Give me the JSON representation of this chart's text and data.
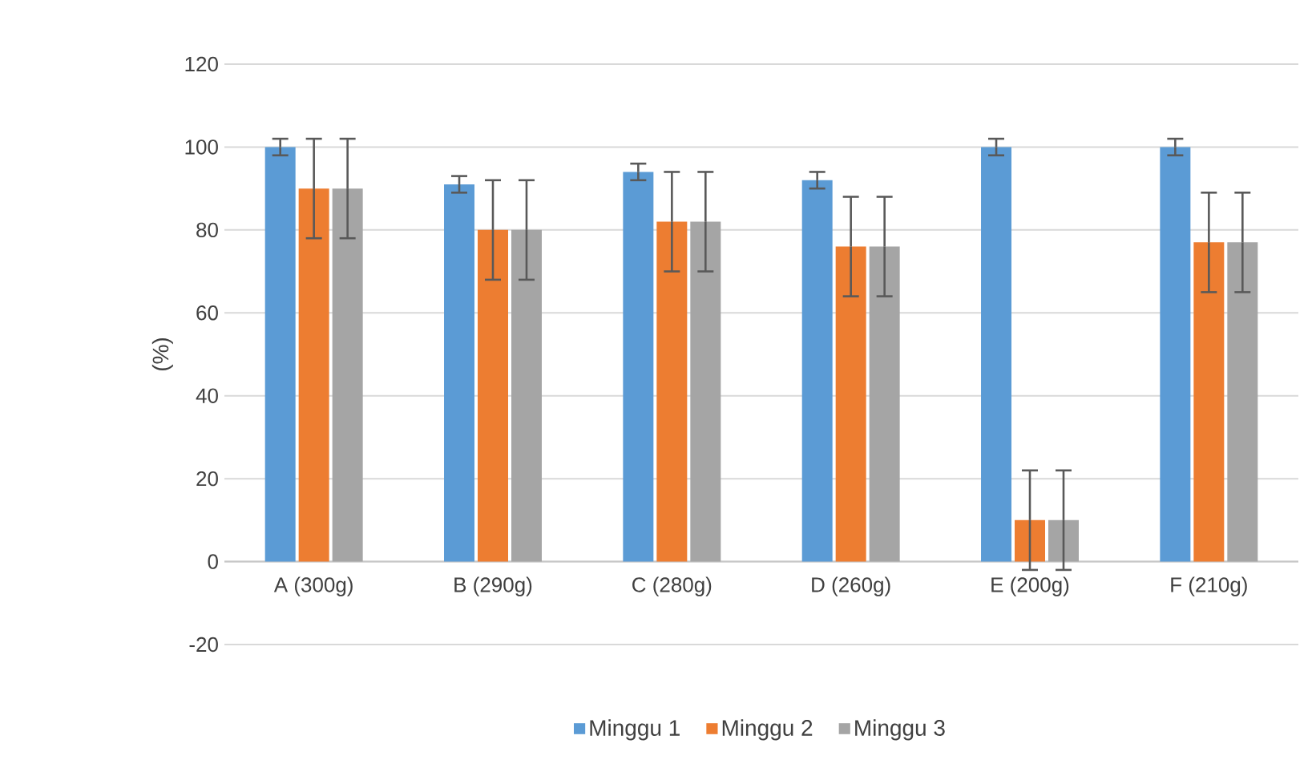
{
  "chart_data": {
    "type": "bar",
    "ylabel": "(%)",
    "categories": [
      "A (300g)",
      "B (290g)",
      "C (280g)",
      "D (260g)",
      "E (200g)",
      "F (210g)"
    ],
    "series": [
      {
        "name": "Minggu 1",
        "color": "#5b9bd5",
        "values": [
          100,
          91,
          94,
          92,
          100,
          100
        ],
        "errors": [
          2,
          2,
          2,
          2,
          2,
          2
        ]
      },
      {
        "name": "Minggu 2",
        "color": "#ed7d31",
        "values": [
          90,
          80,
          82,
          76,
          10,
          77
        ],
        "errors": [
          12,
          12,
          12,
          12,
          12,
          12
        ]
      },
      {
        "name": "Minggu 3",
        "color": "#a5a5a5",
        "values": [
          90,
          80,
          82,
          76,
          10,
          77
        ],
        "errors": [
          12,
          12,
          12,
          12,
          12,
          12
        ]
      }
    ],
    "ylim": [
      -20,
      120
    ],
    "yticks": [
      -20,
      0,
      20,
      40,
      60,
      80,
      100,
      120
    ],
    "grid": "y",
    "legend": "bottom"
  }
}
